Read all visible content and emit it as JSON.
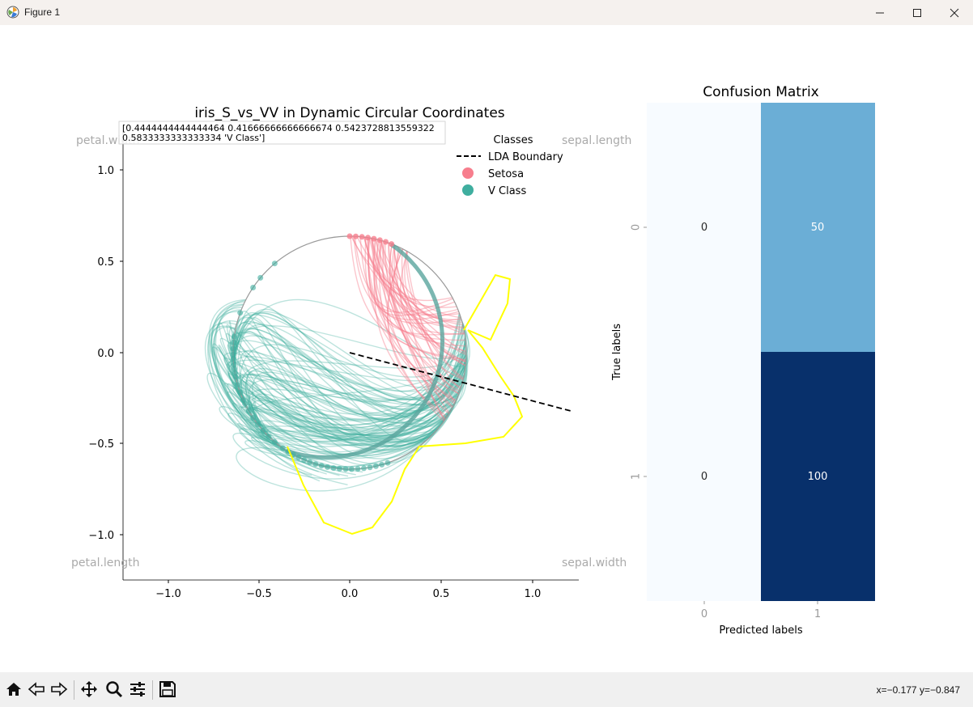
{
  "window": {
    "title": "Figure 1",
    "minimize": "—",
    "maximize": "☐",
    "close": "✕"
  },
  "status": {
    "coords": "x=−0.177 y=−0.847"
  },
  "colors": {
    "setosa": "#f77e8d",
    "vclass": "#3fae9f",
    "highlight": "#ffff00",
    "heat_low": "#f7fbff",
    "heat_mid": "#6baed6",
    "heat_high": "#08306b"
  },
  "left_plot": {
    "title": "iris_S_vs_VV in Dynamic Circular Coordinates",
    "annotation_line1": "[0.4444444444444464 0.41666666666666674 0.5423728813559322",
    "annotation_line2": " 0.5833333333333334 'V Class']",
    "corner_labels": {
      "top_left": "petal.width",
      "top_right": "sepal.length",
      "bottom_left": "petal.length",
      "bottom_right": "sepal.width"
    },
    "legend": {
      "title": "Classes",
      "items": [
        "LDA Boundary",
        "Setosa",
        "V Class"
      ]
    },
    "x_ticks": [
      "−1.0",
      "−0.5",
      "0.0",
      "0.5",
      "1.0"
    ],
    "y_ticks": [
      "1.0",
      "0.5",
      "0.0",
      "−0.5",
      "−1.0"
    ]
  },
  "right_plot": {
    "title": "Confusion Matrix",
    "xlabel": "Predicted labels",
    "ylabel": "True labels",
    "x_ticks": [
      "0",
      "1"
    ],
    "y_ticks": [
      "0",
      "1"
    ]
  },
  "chart_data": [
    {
      "type": "line",
      "title": "iris_S_vs_VV in Dynamic Circular Coordinates",
      "xlim": [
        -1.25,
        1.25
      ],
      "ylim": [
        -1.25,
        1.25
      ],
      "x_ticks": [
        -1.0,
        -0.5,
        0.0,
        0.5,
        1.0
      ],
      "y_ticks": [
        -1.0,
        -0.5,
        0.0,
        0.5,
        1.0
      ],
      "circle_radius": 0.64,
      "lda_boundary": {
        "x": [
          0.0,
          1.21
        ],
        "y": [
          0.0,
          -0.32
        ]
      },
      "series": [
        {
          "name": "Setosa",
          "count": 50
        },
        {
          "name": "V Class",
          "count": 100
        }
      ],
      "legend": "top-right"
    },
    {
      "type": "heatmap",
      "title": "Confusion Matrix",
      "xlabel": "Predicted labels",
      "ylabel": "True labels",
      "x_categories": [
        "0",
        "1"
      ],
      "y_categories": [
        "0",
        "1"
      ],
      "values": [
        [
          0,
          50
        ],
        [
          0,
          100
        ]
      ]
    }
  ]
}
